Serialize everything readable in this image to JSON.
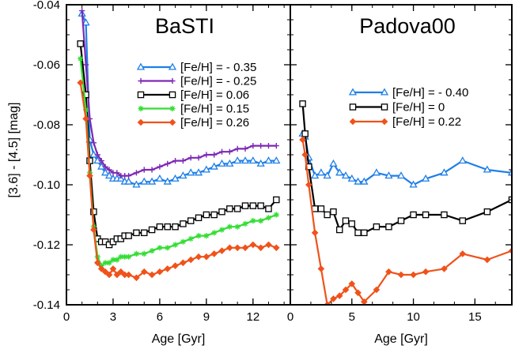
{
  "chart_data": {
    "type": "line",
    "shared_ylabel": "[3.6] - [4.5] [mag]",
    "shared_ylim": [
      -0.14,
      -0.04
    ],
    "shared_yticks": [
      -0.14,
      -0.12,
      -0.1,
      -0.08,
      -0.06,
      -0.04
    ],
    "shared_yticklabels": [
      "-0.14",
      "-0.12",
      "-0.10",
      "-0.08",
      "-0.06",
      "-0.04"
    ],
    "panels": [
      {
        "title": "BaSTI",
        "xlabel": "Age [Gyr]",
        "xlim": [
          0,
          14.4
        ],
        "xticks": [
          0,
          3,
          6,
          9,
          12
        ],
        "xticklabels": [
          "0",
          "3",
          "6",
          "9",
          "12"
        ],
        "legend_position": "top-right",
        "series": [
          {
            "name": "[Fe/H] = - 0.35",
            "color": "#1e7fe8",
            "marker": "triangle",
            "x": [
              1.0,
              1.25,
              1.5,
              1.75,
              2.0,
              2.25,
              2.5,
              2.75,
              3.0,
              3.25,
              3.5,
              3.75,
              4.0,
              4.5,
              5.0,
              5.5,
              6.0,
              6.5,
              7.0,
              7.5,
              8.0,
              8.5,
              9.0,
              9.5,
              10.0,
              10.5,
              11.0,
              11.5,
              12.0,
              12.5,
              13.0,
              13.5
            ],
            "y": [
              -0.043,
              -0.046,
              -0.085,
              -0.09,
              -0.092,
              -0.094,
              -0.096,
              -0.097,
              -0.098,
              -0.098,
              -0.098,
              -0.099,
              -0.099,
              -0.1,
              -0.099,
              -0.099,
              -0.098,
              -0.099,
              -0.098,
              -0.097,
              -0.096,
              -0.096,
              -0.095,
              -0.094,
              -0.093,
              -0.093,
              -0.092,
              -0.092,
              -0.092,
              -0.093,
              -0.092,
              -0.092
            ]
          },
          {
            "name": "[Fe/H] = - 0.25",
            "color": "#7d29b4",
            "marker": "plus",
            "x": [
              1.0,
              1.25,
              1.5,
              1.75,
              2.0,
              2.25,
              2.5,
              2.75,
              3.0,
              3.25,
              3.5,
              3.75,
              4.0,
              4.5,
              5.0,
              5.5,
              6.0,
              6.5,
              7.0,
              7.5,
              8.0,
              8.5,
              9.0,
              9.5,
              10.0,
              10.5,
              11.0,
              11.5,
              12.0,
              12.5,
              13.0,
              13.5
            ],
            "y": [
              -0.042,
              -0.06,
              -0.078,
              -0.086,
              -0.09,
              -0.092,
              -0.094,
              -0.095,
              -0.096,
              -0.096,
              -0.097,
              -0.097,
              -0.097,
              -0.096,
              -0.095,
              -0.095,
              -0.094,
              -0.093,
              -0.092,
              -0.092,
              -0.091,
              -0.091,
              -0.09,
              -0.09,
              -0.089,
              -0.089,
              -0.088,
              -0.088,
              -0.087,
              -0.087,
              -0.087,
              -0.087
            ]
          },
          {
            "name": "[Fe/H] = 0.06",
            "color": "#000000",
            "marker": "square",
            "x": [
              0.9,
              1.25,
              1.5,
              1.75,
              2.0,
              2.25,
              2.5,
              2.75,
              3.0,
              3.25,
              3.5,
              3.75,
              4.0,
              4.5,
              5.0,
              5.5,
              6.0,
              6.5,
              7.0,
              7.5,
              8.0,
              8.5,
              9.0,
              9.5,
              10.0,
              10.5,
              11.0,
              11.5,
              12.0,
              12.5,
              13.0,
              13.5
            ],
            "y": [
              -0.053,
              -0.07,
              -0.092,
              -0.109,
              -0.118,
              -0.119,
              -0.119,
              -0.12,
              -0.119,
              -0.118,
              -0.118,
              -0.117,
              -0.117,
              -0.116,
              -0.116,
              -0.115,
              -0.114,
              -0.114,
              -0.114,
              -0.113,
              -0.112,
              -0.111,
              -0.11,
              -0.11,
              -0.109,
              -0.108,
              -0.108,
              -0.107,
              -0.107,
              -0.107,
              -0.108,
              -0.105
            ]
          },
          {
            "name": "[Fe/H] = 0.15",
            "color": "#33dd33",
            "marker": "star",
            "x": [
              0.9,
              1.25,
              1.5,
              1.75,
              2.0,
              2.25,
              2.5,
              2.75,
              3.0,
              3.25,
              3.5,
              3.75,
              4.0,
              4.5,
              5.0,
              5.5,
              6.0,
              6.5,
              7.0,
              7.5,
              8.0,
              8.5,
              9.0,
              9.5,
              10.0,
              10.5,
              11.0,
              11.5,
              12.0,
              12.5,
              13.0,
              13.5
            ],
            "y": [
              -0.058,
              -0.075,
              -0.096,
              -0.114,
              -0.124,
              -0.127,
              -0.126,
              -0.126,
              -0.125,
              -0.125,
              -0.124,
              -0.124,
              -0.124,
              -0.123,
              -0.123,
              -0.122,
              -0.121,
              -0.121,
              -0.12,
              -0.119,
              -0.118,
              -0.117,
              -0.117,
              -0.116,
              -0.115,
              -0.114,
              -0.114,
              -0.113,
              -0.112,
              -0.112,
              -0.111,
              -0.11
            ]
          },
          {
            "name": "[Fe/H] = 0.26",
            "color": "#f0521a",
            "marker": "diamond",
            "x": [
              0.9,
              1.25,
              1.5,
              1.75,
              2.0,
              2.25,
              2.5,
              2.75,
              3.0,
              3.25,
              3.5,
              3.75,
              4.0,
              4.5,
              5.0,
              5.5,
              6.0,
              6.5,
              7.0,
              7.5,
              8.0,
              8.5,
              9.0,
              9.5,
              10.0,
              10.5,
              11.0,
              11.5,
              12.0,
              12.5,
              13.0,
              13.5
            ],
            "y": [
              -0.066,
              -0.078,
              -0.097,
              -0.115,
              -0.126,
              -0.128,
              -0.129,
              -0.13,
              -0.128,
              -0.13,
              -0.129,
              -0.13,
              -0.13,
              -0.131,
              -0.129,
              -0.13,
              -0.129,
              -0.128,
              -0.127,
              -0.126,
              -0.125,
              -0.124,
              -0.124,
              -0.123,
              -0.122,
              -0.121,
              -0.121,
              -0.121,
              -0.12,
              -0.121,
              -0.12,
              -0.121
            ]
          }
        ]
      },
      {
        "title": "Padova00",
        "xlabel": "Age [Gyr]",
        "xlim": [
          0,
          18
        ],
        "xticks": [
          0,
          5,
          10,
          15
        ],
        "xticklabels": [
          "0",
          "5",
          "10",
          "15"
        ],
        "legend_position": "top-right",
        "series": [
          {
            "name": "[Fe/H] = - 0.40",
            "color": "#1e7fe8",
            "marker": "triangle",
            "x": [
              1.0,
              1.2,
              1.5,
              2.0,
              2.5,
              3.0,
              3.5,
              4.0,
              4.5,
              5.0,
              5.5,
              6.0,
              7.0,
              8.0,
              9.0,
              10.0,
              11.0,
              12.5,
              14.0,
              16.0,
              18.0
            ],
            "y": [
              -0.083,
              -0.084,
              -0.091,
              -0.097,
              -0.096,
              -0.097,
              -0.093,
              -0.096,
              -0.097,
              -0.098,
              -0.099,
              -0.099,
              -0.096,
              -0.097,
              -0.097,
              -0.1,
              -0.098,
              -0.096,
              -0.092,
              -0.095,
              -0.096
            ]
          },
          {
            "name": "[Fe/H] = 0",
            "color": "#000000",
            "marker": "square",
            "x": [
              1.0,
              1.2,
              1.5,
              2.0,
              2.5,
              3.0,
              3.5,
              4.0,
              4.5,
              5.0,
              5.5,
              6.0,
              7.0,
              8.0,
              9.0,
              10.0,
              11.0,
              12.5,
              14.0,
              16.0,
              18.0
            ],
            "y": [
              -0.073,
              -0.083,
              -0.094,
              -0.108,
              -0.108,
              -0.11,
              -0.109,
              -0.115,
              -0.112,
              -0.113,
              -0.116,
              -0.116,
              -0.114,
              -0.114,
              -0.112,
              -0.11,
              -0.11,
              -0.11,
              -0.112,
              -0.109,
              -0.105
            ]
          },
          {
            "name": "[Fe/H] = 0.22",
            "color": "#f0521a",
            "marker": "diamond",
            "x": [
              1.0,
              1.2,
              1.5,
              2.0,
              2.5,
              3.0,
              3.5,
              4.0,
              4.5,
              5.0,
              5.5,
              6.0,
              7.0,
              8.0,
              9.0,
              10.0,
              11.0,
              12.5,
              14.0,
              16.0,
              18.0
            ],
            "y": [
              -0.085,
              -0.09,
              -0.1,
              -0.116,
              -0.128,
              -0.14,
              -0.138,
              -0.137,
              -0.135,
              -0.133,
              -0.136,
              -0.139,
              -0.135,
              -0.129,
              -0.13,
              -0.13,
              -0.129,
              -0.128,
              -0.123,
              -0.125,
              -0.122
            ]
          }
        ]
      }
    ]
  }
}
